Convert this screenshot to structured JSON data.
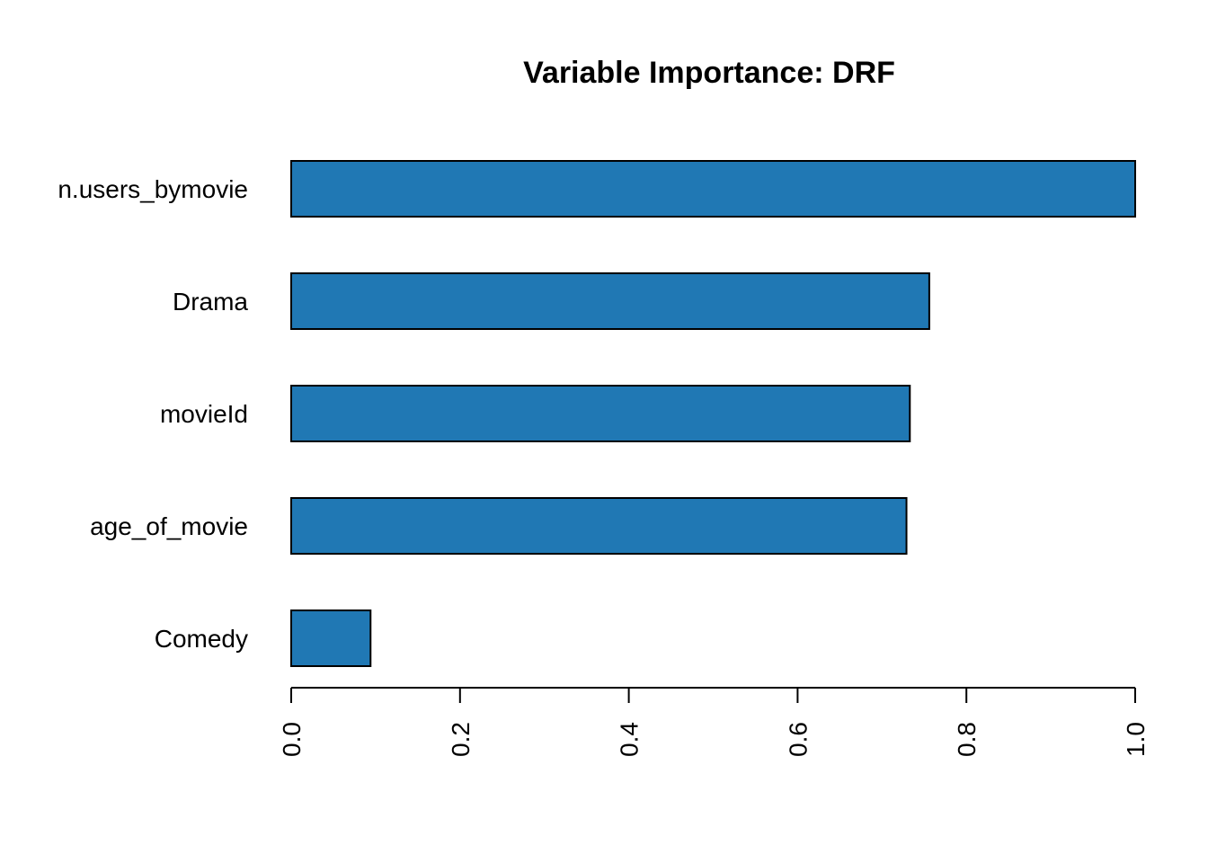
{
  "chart_data": {
    "type": "bar",
    "orientation": "horizontal",
    "title": "Variable Importance: DRF",
    "xlabel": "",
    "ylabel": "",
    "categories": [
      "n.users_bymovie",
      "Drama",
      "movieId",
      "age_of_movie",
      "Comedy"
    ],
    "values": [
      1.0,
      0.756,
      0.733,
      0.729,
      0.094
    ],
    "xlim": [
      0,
      1
    ],
    "xticks": [
      "0.0",
      "0.2",
      "0.4",
      "0.6",
      "0.8",
      "1.0"
    ],
    "tick_label_rotation": "vertical",
    "grid": false,
    "legend": "none",
    "bar_color": "#2078b4"
  }
}
